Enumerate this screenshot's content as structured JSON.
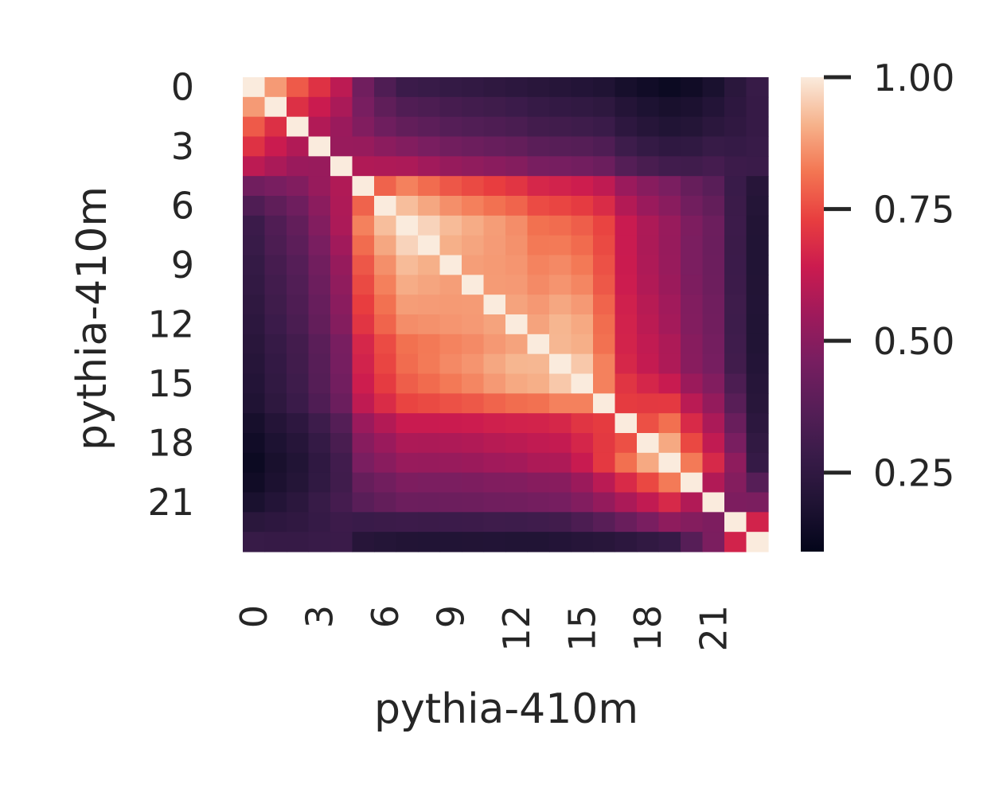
{
  "chart_data": {
    "type": "heatmap",
    "xlabel": "pythia-410m",
    "ylabel": "pythia-410m",
    "x_tick_labels": [
      "0",
      "3",
      "6",
      "9",
      "12",
      "15",
      "18",
      "21"
    ],
    "y_tick_labels": [
      "0",
      "3",
      "6",
      "9",
      "12",
      "15",
      "18",
      "21"
    ],
    "n_rows": 24,
    "n_cols": 24,
    "colormap": "rocket",
    "colorbar": {
      "vmin": 0.1,
      "vmax": 1.0,
      "tick_values": [
        0.25,
        0.5,
        0.75,
        1.0
      ],
      "tick_labels": [
        "0.25",
        "0.50",
        "0.75",
        "1.00"
      ]
    },
    "blocks": [
      0,
      5,
      13,
      16,
      22,
      23
    ],
    "row_samples": [
      {
        "row": 0,
        "values": [
          1.0,
          0.85,
          0.75,
          0.7,
          0.62,
          0.38,
          0.3,
          0.28,
          0.27,
          0.25,
          0.24,
          0.23,
          0.22,
          0.2,
          0.19,
          0.19,
          0.19,
          0.15,
          0.13,
          0.12,
          0.11,
          0.13,
          0.2,
          0.25
        ]
      },
      {
        "row": 7,
        "values": [
          0.3,
          0.32,
          0.32,
          0.38,
          0.46,
          0.88,
          0.96,
          1.0,
          0.95,
          0.9,
          0.88,
          0.86,
          0.84,
          0.78,
          0.79,
          0.8,
          0.77,
          0.62,
          0.56,
          0.53,
          0.49,
          0.49,
          0.3,
          0.2
        ]
      },
      {
        "row": 14,
        "values": [
          0.24,
          0.25,
          0.25,
          0.3,
          0.38,
          0.7,
          0.78,
          0.82,
          0.84,
          0.86,
          0.87,
          0.9,
          0.92,
          0.9,
          0.96,
          1.0,
          0.86,
          0.6,
          0.58,
          0.56,
          0.5,
          0.52,
          0.32,
          0.22
        ]
      },
      {
        "row": 19,
        "values": [
          0.14,
          0.16,
          0.16,
          0.2,
          0.26,
          0.52,
          0.53,
          0.54,
          0.53,
          0.53,
          0.54,
          0.56,
          0.57,
          0.6,
          0.6,
          0.62,
          0.7,
          0.8,
          0.88,
          1.0,
          0.84,
          0.72,
          0.58,
          0.28
        ]
      },
      {
        "row": 23,
        "values": [
          0.3,
          0.3,
          0.31,
          0.33,
          0.35,
          0.22,
          0.21,
          0.2,
          0.19,
          0.19,
          0.19,
          0.19,
          0.18,
          0.18,
          0.19,
          0.2,
          0.2,
          0.22,
          0.24,
          0.26,
          0.28,
          0.3,
          0.5,
          1.0
        ]
      }
    ]
  }
}
